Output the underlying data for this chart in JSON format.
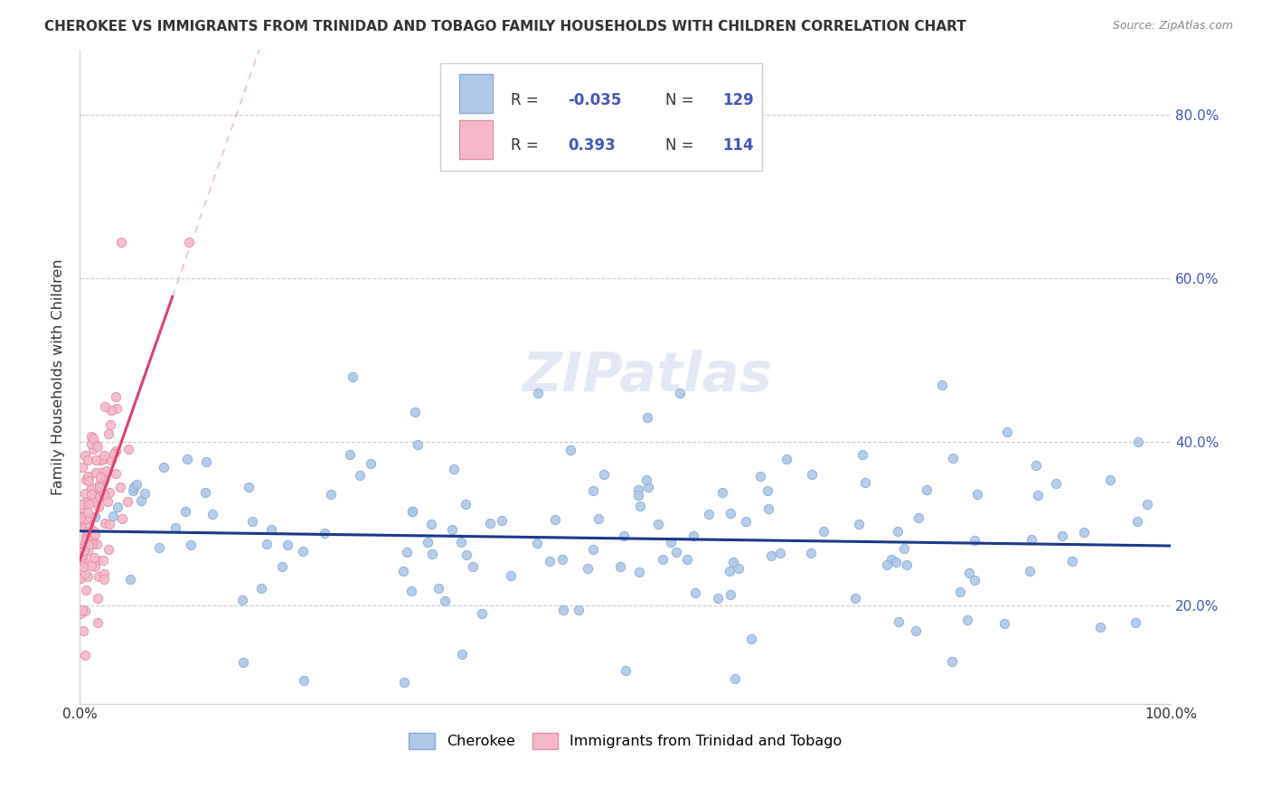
{
  "title": "CHEROKEE VS IMMIGRANTS FROM TRINIDAD AND TOBAGO FAMILY HOUSEHOLDS WITH CHILDREN CORRELATION CHART",
  "source": "Source: ZipAtlas.com",
  "ylabel": "Family Households with Children",
  "r1": "-0.035",
  "n1": "129",
  "r2": "0.393",
  "n2": "114",
  "blue_color": "#adc8e8",
  "pink_color": "#f5b8c8",
  "blue_line_color": "#1a3a8c",
  "pink_line_color": "#e0406a",
  "pink_dash_color": "#f0a0b8",
  "watermark": "ZIPatlas",
  "background_color": "#ffffff",
  "grid_color": "#cccccc",
  "tick_color": "#4455bb",
  "text_color": "#333333",
  "source_color": "#888888",
  "xlim": [
    0.0,
    1.0
  ],
  "ylim": [
    0.08,
    0.88
  ],
  "yticks": [
    0.2,
    0.4,
    0.6,
    0.8
  ],
  "ytick_labels": [
    "20.0%",
    "40.0%",
    "60.0%",
    "80.0%"
  ]
}
